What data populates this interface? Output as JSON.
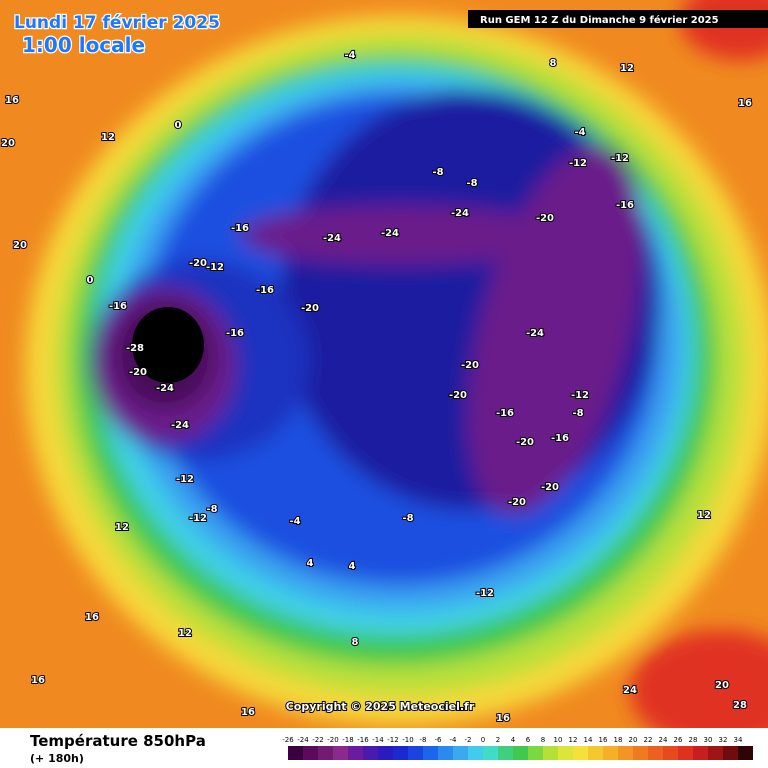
{
  "header": {
    "date": "Lundi 17 février 2025",
    "time": "1:00 locale",
    "run": "Run GEM 12 Z du Dimanche 9 février 2025"
  },
  "footer": {
    "title": "Température 850hPa",
    "lead": "(+ 180h)",
    "copyright": "Copyright © 2025 Meteociel.fr"
  },
  "colorbar": {
    "ticks": [
      -26,
      -24,
      -22,
      -20,
      -18,
      -16,
      -14,
      -12,
      -10,
      -8,
      -6,
      -4,
      -2,
      0,
      2,
      4,
      6,
      8,
      10,
      12,
      14,
      16,
      18,
      20,
      22,
      24,
      26,
      28,
      30,
      32,
      34
    ],
    "colors": [
      "#3a0040",
      "#5c0a5c",
      "#741a74",
      "#8a2a8a",
      "#6c1aa0",
      "#4a1ab0",
      "#2a1ac0",
      "#1a2ad0",
      "#1a44e0",
      "#1a66ec",
      "#2a8af0",
      "#3aaaf0",
      "#40ccea",
      "#40dcc8",
      "#3cd080",
      "#40c850",
      "#7ad840",
      "#b4e03a",
      "#dce63a",
      "#f6e03a",
      "#f6c830",
      "#f6b028",
      "#f49424",
      "#f07a20",
      "#ec6020",
      "#e84a1e",
      "#e0301e",
      "#c81e1e",
      "#a01414",
      "#700c0c",
      "#300404"
    ]
  },
  "map_labels": [
    "-28",
    "-24",
    "-20",
    "-24",
    "-16",
    "-16",
    "-20",
    "-16",
    "-12",
    "-20",
    "-16",
    "-24",
    "-24",
    "-24",
    "-20",
    "-16",
    "-12",
    "-12",
    "-8",
    "-8",
    "-4",
    "-4",
    "-24",
    "-20",
    "-20",
    "-16",
    "-20",
    "-20",
    "-20",
    "-16",
    "-12",
    "-8",
    "-12",
    "-8",
    "-12",
    "-8",
    "-12",
    "-4",
    "0",
    "0",
    "4",
    "4",
    "8",
    "12",
    "12",
    "12",
    "16",
    "16",
    "20",
    "20",
    "24",
    "28",
    "20",
    "12",
    "16",
    "12",
    "8",
    "16",
    "16",
    "16"
  ]
}
